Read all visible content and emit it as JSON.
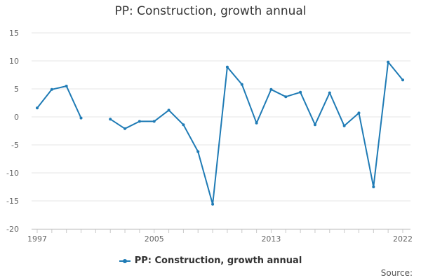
{
  "chart_data": {
    "type": "line",
    "title": "PP: Construction, growth annual",
    "xlabel": "",
    "ylabel": "",
    "ylim": [
      -20,
      15
    ],
    "y_ticks": [
      15,
      10,
      5,
      0,
      -5,
      -10,
      -15,
      -20
    ],
    "x_tick_labels": [
      "1997",
      "2005",
      "2013",
      "2022"
    ],
    "x_tick_years": [
      1997,
      2005,
      2013,
      2022
    ],
    "xlim": [
      1997,
      2022
    ],
    "grid": true,
    "legend": "bottom-center",
    "series": [
      {
        "name": "PP: Construction, growth annual",
        "color": "#1f7bb5",
        "points": [
          [
            1997,
            1.6
          ],
          [
            1998,
            4.9
          ],
          [
            1999,
            5.5
          ],
          [
            2000,
            -0.2
          ],
          [
            2001,
            null
          ],
          [
            2002,
            -0.4
          ],
          [
            2003,
            -2.1
          ],
          [
            2004,
            -0.8
          ],
          [
            2005,
            -0.8
          ],
          [
            2006,
            1.2
          ],
          [
            2007,
            -1.4
          ],
          [
            2008,
            -6.2
          ],
          [
            2009,
            -15.6
          ],
          [
            2010,
            8.9
          ],
          [
            2011,
            5.8
          ],
          [
            2012,
            -1.1
          ],
          [
            2013,
            4.9
          ],
          [
            2014,
            3.6
          ],
          [
            2015,
            4.4
          ],
          [
            2016,
            -1.4
          ],
          [
            2017,
            4.3
          ],
          [
            2018,
            -1.6
          ],
          [
            2019,
            0.7
          ],
          [
            2020,
            -12.5
          ],
          [
            2021,
            9.8
          ],
          [
            2022,
            6.6
          ]
        ]
      }
    ]
  },
  "footer": {
    "source_label": "Source:"
  }
}
